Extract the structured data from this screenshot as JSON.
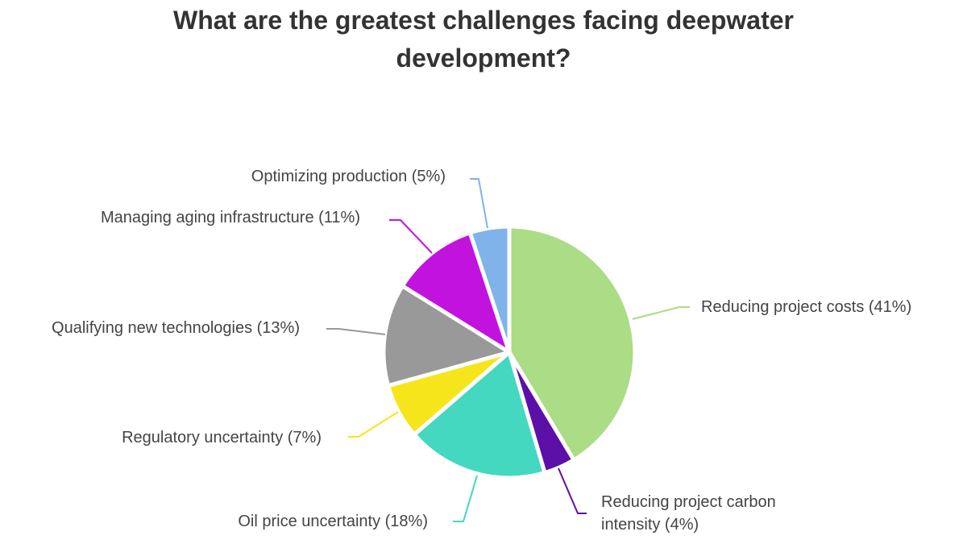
{
  "chart_data": {
    "type": "pie",
    "title": "What are the greatest challenges facing deepwater development?",
    "label_format": "{label} ({pct}%)",
    "start_angle": "top",
    "direction": "clockwise",
    "legend": "none",
    "background": "#ffffff",
    "title_color": "#333333",
    "label_text_color": "#444444",
    "slice_gap_color": "#ffffff",
    "slices": [
      {
        "label": "Reducing project costs",
        "pct": 41,
        "color": "#abdc86"
      },
      {
        "label": "Reducing project carbon intensity",
        "pct": 4,
        "color": "#5c10a8"
      },
      {
        "label": "Oil price uncertainty",
        "pct": 18,
        "color": "#43d8bf"
      },
      {
        "label": "Regulatory uncertainty",
        "pct": 7,
        "color": "#f7e51c"
      },
      {
        "label": "Qualifying new technologies",
        "pct": 13,
        "color": "#999999"
      },
      {
        "label": "Managing aging infrastructure",
        "pct": 11,
        "color": "#c113dd"
      },
      {
        "label": "Optimizing production",
        "pct": 5,
        "color": "#7fb3ea"
      }
    ]
  }
}
